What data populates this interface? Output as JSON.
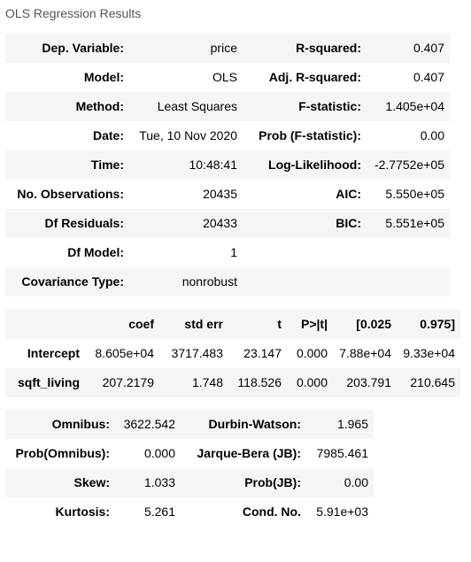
{
  "caption": "OLS Regression Results",
  "summary": [
    {
      "l1": "Dep. Variable:",
      "v1": "price",
      "l2": "R-squared:",
      "v2": "0.407"
    },
    {
      "l1": "Model:",
      "v1": "OLS",
      "l2": "Adj. R-squared:",
      "v2": "0.407"
    },
    {
      "l1": "Method:",
      "v1": "Least Squares",
      "l2": "F-statistic:",
      "v2": "1.405e+04"
    },
    {
      "l1": "Date:",
      "v1": "Tue, 10 Nov 2020",
      "l2": "Prob (F-statistic):",
      "v2": "0.00"
    },
    {
      "l1": "Time:",
      "v1": "10:48:41",
      "l2": "Log-Likelihood:",
      "v2": "-2.7752e+05"
    },
    {
      "l1": "No. Observations:",
      "v1": "20435",
      "l2": "AIC:",
      "v2": "5.550e+05"
    },
    {
      "l1": "Df Residuals:",
      "v1": "20433",
      "l2": "BIC:",
      "v2": "5.551e+05"
    },
    {
      "l1": "Df Model:",
      "v1": "1",
      "l2": "",
      "v2": ""
    },
    {
      "l1": "Covariance Type:",
      "v1": "nonrobust",
      "l2": "",
      "v2": ""
    }
  ],
  "coef": {
    "headers": [
      "",
      "coef",
      "std err",
      "t",
      "P>|t|",
      "[0.025",
      "0.975]"
    ],
    "rows": [
      [
        "Intercept",
        "8.605e+04",
        "3717.483",
        "23.147",
        "0.000",
        "7.88e+04",
        "9.33e+04"
      ],
      [
        "sqft_living",
        "207.2179",
        "1.748",
        "118.526",
        "0.000",
        "203.791",
        "210.645"
      ]
    ]
  },
  "diagnostics": [
    {
      "l1": "Omnibus:",
      "v1": "3622.542",
      "l2": "Durbin-Watson:",
      "v2": "1.965"
    },
    {
      "l1": "Prob(Omnibus):",
      "v1": "0.000",
      "l2": "Jarque-Bera (JB):",
      "v2": "7985.461"
    },
    {
      "l1": "Skew:",
      "v1": "1.033",
      "l2": "Prob(JB):",
      "v2": "0.00"
    },
    {
      "l1": "Kurtosis:",
      "v1": "5.261",
      "l2": "Cond. No.",
      "v2": "5.91e+03"
    }
  ]
}
